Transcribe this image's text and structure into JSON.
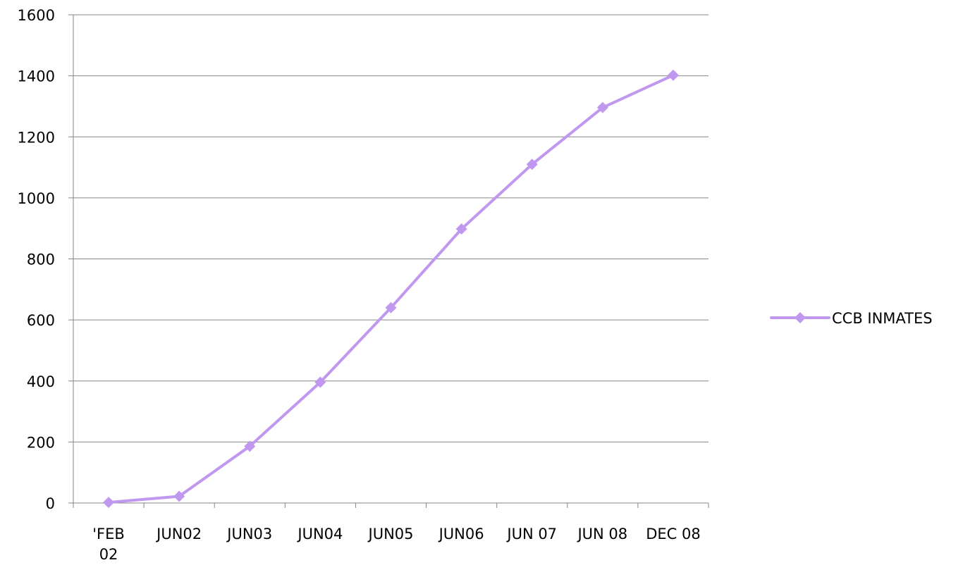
{
  "chart_data": {
    "type": "line",
    "categories": [
      "'FEB 02",
      "JUN02",
      "JUN03",
      "JUN04",
      "JUN05",
      "JUN06",
      "JUN 07",
      "JUN 08",
      "DEC 08"
    ],
    "category_lines": [
      [
        "'FEB",
        "02"
      ],
      [
        "JUN02"
      ],
      [
        "JUN03"
      ],
      [
        "JUN04"
      ],
      [
        "JUN05"
      ],
      [
        "JUN06"
      ],
      [
        "JUN 07"
      ],
      [
        "JUN 08"
      ],
      [
        "DEC 08"
      ]
    ],
    "series": [
      {
        "name": "CCB INMATES",
        "color": "#C198F0",
        "marker": "diamond",
        "values": [
          2,
          22,
          186,
          396,
          640,
          898,
          1110,
          1296,
          1402
        ]
      }
    ],
    "ylim": [
      0,
      1600
    ],
    "yticks": [
      "0",
      "200",
      "400",
      "600",
      "800",
      "1000",
      "1200",
      "1400",
      "1600"
    ],
    "grid": true,
    "legend_position": "right",
    "title": "",
    "xlabel": "",
    "ylabel": ""
  }
}
